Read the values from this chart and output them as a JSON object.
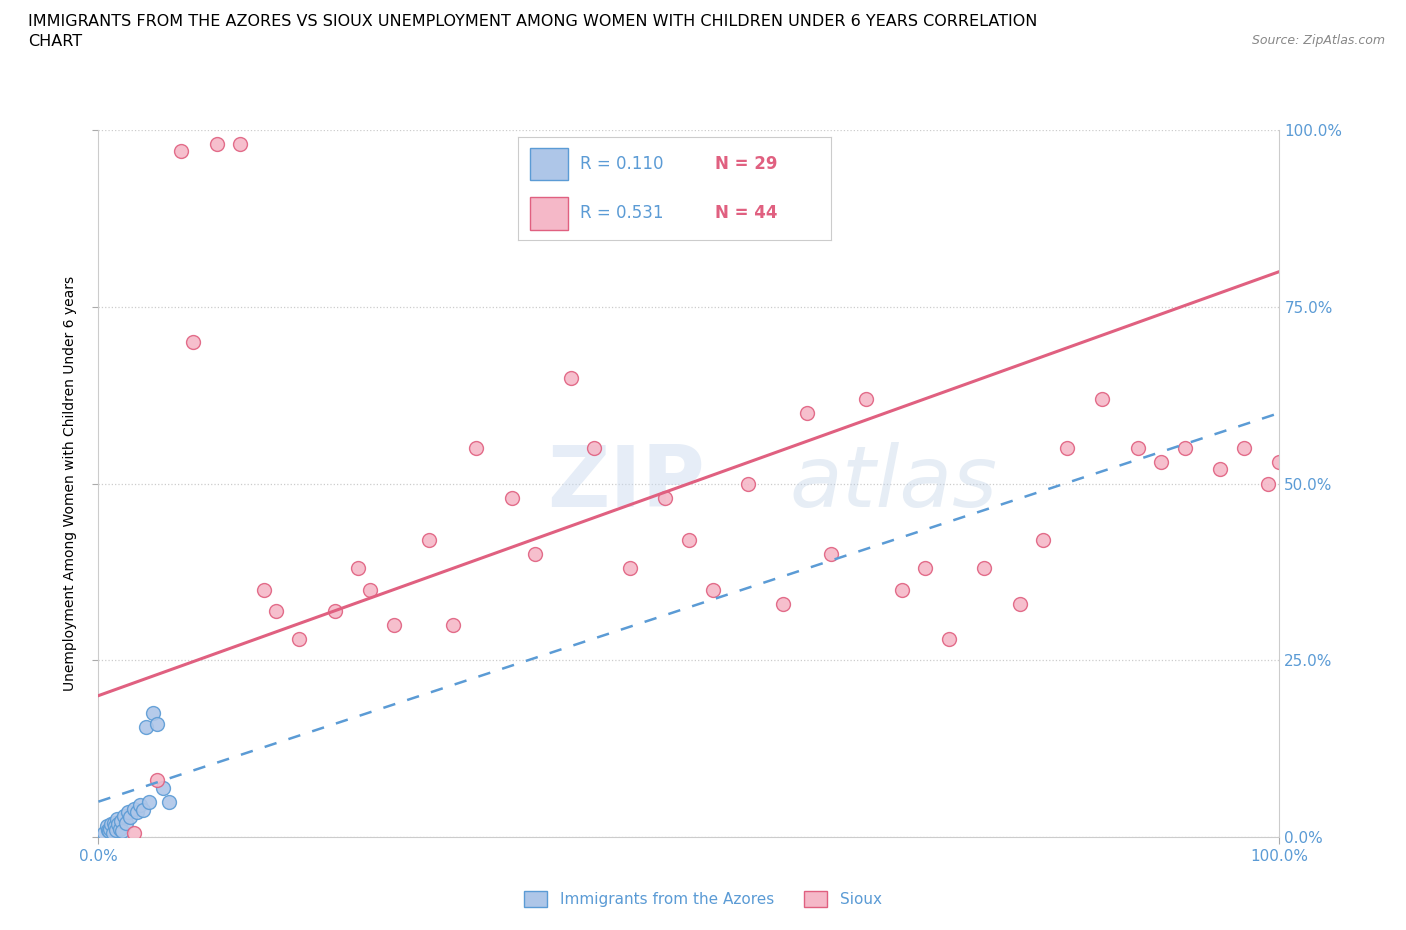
{
  "title_line1": "IMMIGRANTS FROM THE AZORES VS SIOUX UNEMPLOYMENT AMONG WOMEN WITH CHILDREN UNDER 6 YEARS CORRELATION",
  "title_line2": "CHART",
  "source_text": "Source: ZipAtlas.com",
  "ylabel": "Unemployment Among Women with Children Under 6 years",
  "xlim": [
    0.0,
    1.0
  ],
  "ylim": [
    0.0,
    1.0
  ],
  "ytick_positions": [
    0.0,
    0.25,
    0.5,
    0.75,
    1.0
  ],
  "ytick_labels": [
    "0.0%",
    "25.0%",
    "50.0%",
    "75.0%",
    "100.0%"
  ],
  "xtick_positions": [
    0.0,
    1.0
  ],
  "xtick_labels": [
    "0.0%",
    "100.0%"
  ],
  "watermark_zip": "ZIP",
  "watermark_atlas": "atlas",
  "label_color": "#5b9bd5",
  "blue_color": "#aec6e8",
  "blue_edge_color": "#5b9bd5",
  "pink_color": "#f5b8c8",
  "pink_edge_color": "#e06080",
  "blue_line_color": "#5b9bd5",
  "pink_line_color": "#e06080",
  "blue_scatter_x": [
    0.005,
    0.007,
    0.008,
    0.009,
    0.01,
    0.011,
    0.012,
    0.013,
    0.014,
    0.015,
    0.016,
    0.017,
    0.018,
    0.019,
    0.02,
    0.022,
    0.023,
    0.025,
    0.027,
    0.03,
    0.033,
    0.035,
    0.038,
    0.04,
    0.043,
    0.046,
    0.05,
    0.055,
    0.06
  ],
  "blue_scatter_y": [
    0.005,
    0.015,
    0.01,
    0.008,
    0.012,
    0.018,
    0.005,
    0.02,
    0.015,
    0.01,
    0.025,
    0.018,
    0.012,
    0.022,
    0.008,
    0.03,
    0.02,
    0.035,
    0.028,
    0.04,
    0.035,
    0.045,
    0.038,
    0.155,
    0.05,
    0.175,
    0.16,
    0.07,
    0.05
  ],
  "pink_scatter_x": [
    0.03,
    0.05,
    0.07,
    0.08,
    0.1,
    0.12,
    0.14,
    0.15,
    0.17,
    0.2,
    0.22,
    0.23,
    0.25,
    0.28,
    0.3,
    0.32,
    0.35,
    0.37,
    0.4,
    0.42,
    0.45,
    0.48,
    0.5,
    0.52,
    0.55,
    0.58,
    0.6,
    0.62,
    0.65,
    0.68,
    0.7,
    0.72,
    0.75,
    0.78,
    0.8,
    0.82,
    0.85,
    0.88,
    0.9,
    0.92,
    0.95,
    0.97,
    0.99,
    1.0
  ],
  "pink_scatter_y": [
    0.005,
    0.08,
    0.97,
    0.7,
    0.98,
    0.98,
    0.35,
    0.32,
    0.28,
    0.32,
    0.38,
    0.35,
    0.3,
    0.42,
    0.3,
    0.55,
    0.48,
    0.4,
    0.65,
    0.55,
    0.38,
    0.48,
    0.42,
    0.35,
    0.5,
    0.33,
    0.6,
    0.4,
    0.62,
    0.35,
    0.38,
    0.28,
    0.38,
    0.33,
    0.42,
    0.55,
    0.62,
    0.55,
    0.53,
    0.55,
    0.52,
    0.55,
    0.5,
    0.53
  ],
  "pink_line_x0": 0.0,
  "pink_line_y0": 0.2,
  "pink_line_x1": 1.0,
  "pink_line_y1": 0.8,
  "blue_line_x0": 0.0,
  "blue_line_y0": 0.05,
  "blue_line_x1": 1.0,
  "blue_line_y1": 0.6
}
